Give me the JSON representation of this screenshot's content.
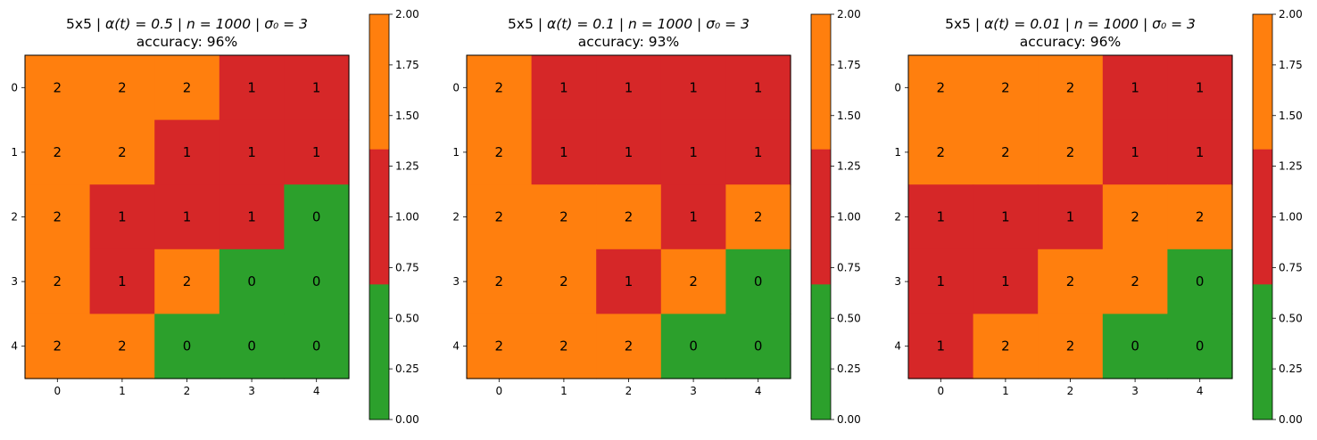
{
  "chart_data": [
    {
      "type": "heatmap",
      "title": {
        "prefix": "5x5 | α(t) = 0.5 | n = 1000 | σ₀ = 3",
        "parts": [
          "5x5 | ",
          "α(t) = 0.5",
          " | ",
          "n = 1000",
          " | ",
          "σ₀ = 3"
        ],
        "accuracy": "accuracy: 96%"
      },
      "x_ticks": [
        "0",
        "1",
        "2",
        "3",
        "4"
      ],
      "y_ticks": [
        "0",
        "1",
        "2",
        "3",
        "4"
      ],
      "grid": [
        [
          2,
          2,
          2,
          1,
          1
        ],
        [
          2,
          2,
          1,
          1,
          1
        ],
        [
          2,
          1,
          1,
          1,
          0
        ],
        [
          2,
          1,
          2,
          0,
          0
        ],
        [
          2,
          2,
          0,
          0,
          0
        ]
      ],
      "colorbar": {
        "ticks": [
          "0.00",
          "0.25",
          "0.50",
          "0.75",
          "1.00",
          "1.25",
          "1.50",
          "1.75",
          "2.00"
        ],
        "range": [
          0,
          2
        ]
      }
    },
    {
      "type": "heatmap",
      "title": {
        "prefix": "5x5 | α(t) = 0.1 | n = 1000 | σ₀ = 3",
        "parts": [
          "5x5 | ",
          "α(t) = 0.1",
          " | ",
          "n = 1000",
          " | ",
          "σ₀ = 3"
        ],
        "accuracy": "accuracy: 93%"
      },
      "x_ticks": [
        "0",
        "1",
        "2",
        "3",
        "4"
      ],
      "y_ticks": [
        "0",
        "1",
        "2",
        "3",
        "4"
      ],
      "grid": [
        [
          2,
          1,
          1,
          1,
          1
        ],
        [
          2,
          1,
          1,
          1,
          1
        ],
        [
          2,
          2,
          2,
          1,
          2
        ],
        [
          2,
          2,
          1,
          2,
          0
        ],
        [
          2,
          2,
          2,
          0,
          0
        ]
      ],
      "colorbar": {
        "ticks": [
          "0.00",
          "0.25",
          "0.50",
          "0.75",
          "1.00",
          "1.25",
          "1.50",
          "1.75",
          "2.00"
        ],
        "range": [
          0,
          2
        ]
      }
    },
    {
      "type": "heatmap",
      "title": {
        "prefix": "5x5 | α(t) = 0.01 | n = 1000 | σ₀ = 3",
        "parts": [
          "5x5 | ",
          "α(t) = 0.01",
          " | ",
          "n = 1000",
          " | ",
          "σ₀ = 3"
        ],
        "accuracy": "accuracy: 96%"
      },
      "x_ticks": [
        "0",
        "1",
        "2",
        "3",
        "4"
      ],
      "y_ticks": [
        "0",
        "1",
        "2",
        "3",
        "4"
      ],
      "grid": [
        [
          2,
          2,
          2,
          1,
          1
        ],
        [
          2,
          2,
          2,
          1,
          1
        ],
        [
          1,
          1,
          1,
          2,
          2
        ],
        [
          1,
          1,
          2,
          2,
          0
        ],
        [
          1,
          2,
          2,
          0,
          0
        ]
      ],
      "colorbar": {
        "ticks": [
          "0.00",
          "0.25",
          "0.50",
          "0.75",
          "1.00",
          "1.25",
          "1.50",
          "1.75",
          "2.00"
        ],
        "range": [
          0,
          2
        ]
      }
    }
  ],
  "colors": {
    "class_0": "#2ca02c",
    "class_1": "#d62728",
    "class_2": "#ff7f0e"
  }
}
